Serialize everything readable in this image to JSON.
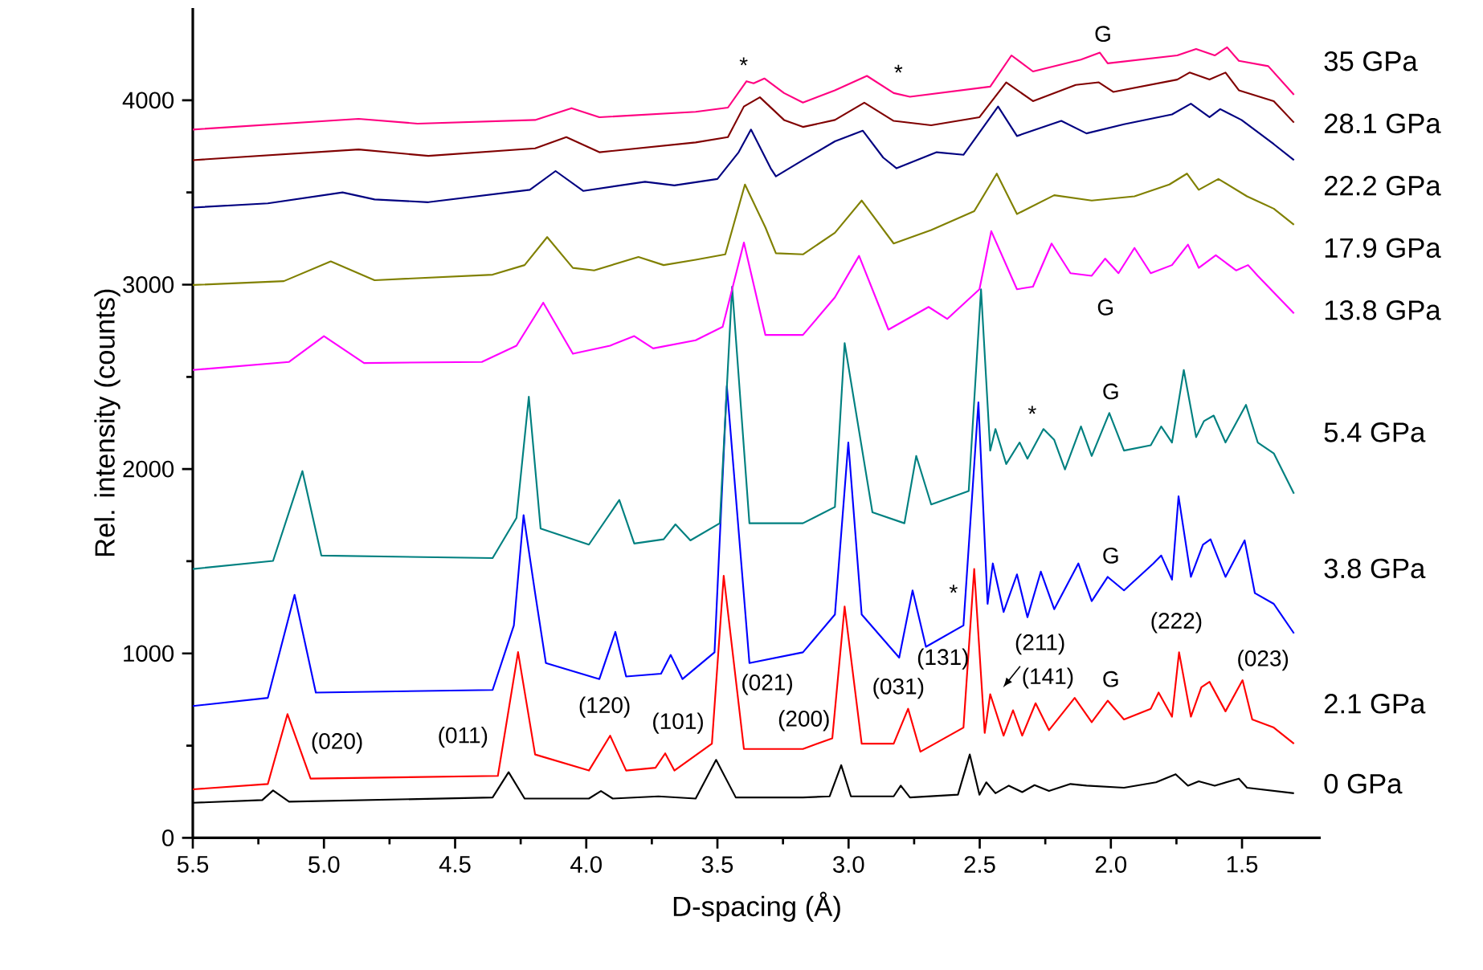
{
  "chart_data": {
    "type": "line",
    "xlabel": "D-spacing (Å)",
    "ylabel": "Rel. intensity (counts)",
    "xlim": [
      5.5,
      1.2
    ],
    "ylim": [
      0,
      4500
    ],
    "xticks": [
      {
        "value": 5.5,
        "label": "5.5"
      },
      {
        "value": 5.0,
        "label": "5.0"
      },
      {
        "value": 4.5,
        "label": "4.5"
      },
      {
        "value": 4.0,
        "label": "4.0"
      },
      {
        "value": 3.5,
        "label": "3.5"
      },
      {
        "value": 3.0,
        "label": "3.0"
      },
      {
        "value": 2.5,
        "label": "2.5"
      },
      {
        "value": 2.0,
        "label": "2.0"
      },
      {
        "value": 1.5,
        "label": "1.5"
      }
    ],
    "yticks": [
      0,
      1000,
      2000,
      3000,
      4000
    ],
    "grid": false,
    "legend": false,
    "marker": "none",
    "line_style": "solid",
    "series": [
      {
        "name": "0 GPa",
        "color": "#000000",
        "x": [
          5.5,
          5.235,
          5.194,
          5.133,
          4.357,
          4.296,
          4.235,
          3.99,
          3.944,
          3.899,
          3.725,
          3.583,
          3.505,
          3.43,
          3.174,
          3.072,
          3.028,
          2.991,
          2.828,
          2.801,
          2.766,
          2.583,
          2.538,
          2.501,
          2.475,
          2.44,
          2.389,
          2.338,
          2.291,
          2.236,
          2.154,
          2.093,
          1.95,
          1.828,
          1.753,
          1.706,
          1.665,
          1.604,
          1.512,
          1.481,
          1.302
        ],
        "values": [
          190,
          205,
          257,
          196,
          219,
          356,
          213,
          213,
          254,
          213,
          225,
          213,
          423,
          219,
          219,
          225,
          394,
          225,
          225,
          283,
          219,
          234,
          452,
          234,
          301,
          242,
          283,
          248,
          286,
          254,
          292,
          283,
          272,
          301,
          345,
          283,
          307,
          283,
          321,
          272,
          242
        ]
      },
      {
        "name": "2.1 GPa",
        "color": "#ff0000",
        "x": [
          5.5,
          5.214,
          5.139,
          5.051,
          4.337,
          4.26,
          4.195,
          3.99,
          3.909,
          3.848,
          3.736,
          3.699,
          3.664,
          3.521,
          3.476,
          3.399,
          3.174,
          3.062,
          3.015,
          2.95,
          2.828,
          2.773,
          2.726,
          2.562,
          2.521,
          2.481,
          2.46,
          2.409,
          2.373,
          2.338,
          2.287,
          2.236,
          2.138,
          2.073,
          2.012,
          1.95,
          1.848,
          1.818,
          1.767,
          1.74,
          1.695,
          1.655,
          1.624,
          1.563,
          1.498,
          1.461,
          1.379,
          1.302
        ],
        "values": [
          263,
          292,
          671,
          321,
          336,
          1007,
          452,
          365,
          554,
          365,
          380,
          458,
          365,
          511,
          1421,
          482,
          482,
          540,
          1254,
          511,
          511,
          700,
          467,
          598,
          1458,
          569,
          779,
          554,
          692,
          554,
          730,
          584,
          759,
          627,
          744,
          642,
          700,
          788,
          657,
          1006,
          657,
          817,
          846,
          686,
          855,
          642,
          598,
          511
        ]
      },
      {
        "name": "3.8 GPa",
        "color": "#0000ff",
        "x": [
          5.5,
          5.214,
          5.112,
          5.031,
          4.357,
          4.276,
          4.239,
          4.195,
          4.154,
          3.95,
          3.889,
          3.848,
          3.715,
          3.678,
          3.633,
          3.511,
          3.464,
          3.378,
          3.174,
          3.052,
          3.001,
          2.95,
          2.807,
          2.756,
          2.705,
          2.562,
          2.505,
          2.47,
          2.45,
          2.409,
          2.358,
          2.318,
          2.267,
          2.216,
          2.124,
          2.073,
          2.012,
          1.95,
          1.838,
          1.808,
          1.767,
          1.742,
          1.695,
          1.649,
          1.62,
          1.563,
          1.49,
          1.451,
          1.379,
          1.302
        ],
        "values": [
          715,
          759,
          1318,
          788,
          802,
          1152,
          1750,
          1327,
          948,
          861,
          1117,
          875,
          890,
          992,
          861,
          1006,
          2450,
          948,
          1006,
          1211,
          2144,
          1211,
          977,
          1342,
          1036,
          1152,
          2362,
          1269,
          1488,
          1225,
          1429,
          1196,
          1444,
          1240,
          1488,
          1284,
          1415,
          1342,
          1488,
          1531,
          1400,
          1852,
          1415,
          1590,
          1619,
          1415,
          1613,
          1327,
          1269,
          1109
        ]
      },
      {
        "name": "5.4 GPa",
        "color": "#008080",
        "x": [
          5.5,
          5.194,
          5.082,
          5.01,
          4.357,
          4.266,
          4.219,
          4.174,
          3.99,
          3.874,
          3.817,
          3.705,
          3.66,
          3.603,
          3.491,
          3.444,
          3.378,
          3.174,
          3.052,
          3.015,
          2.909,
          2.787,
          2.742,
          2.685,
          2.542,
          2.495,
          2.46,
          2.44,
          2.399,
          2.348,
          2.318,
          2.257,
          2.216,
          2.175,
          2.114,
          2.073,
          2.006,
          1.95,
          1.848,
          1.808,
          1.767,
          1.722,
          1.675,
          1.645,
          1.608,
          1.563,
          1.485,
          1.44,
          1.379,
          1.302
        ],
        "values": [
          1458,
          1502,
          1989,
          1531,
          1517,
          1735,
          2392,
          1677,
          1590,
          1832,
          1596,
          1619,
          1700,
          1613,
          1706,
          2989,
          1706,
          1706,
          1794,
          2683,
          1765,
          1706,
          2071,
          1808,
          1881,
          2975,
          2100,
          2217,
          2027,
          2144,
          2056,
          2217,
          2158,
          1998,
          2231,
          2071,
          2304,
          2100,
          2129,
          2231,
          2144,
          2537,
          2173,
          2260,
          2290,
          2144,
          2348,
          2144,
          2085,
          1867
        ]
      },
      {
        "name": "13.8 GPa",
        "color": "#ff00ff",
        "x": [
          5.5,
          5.133,
          5.0,
          4.847,
          4.398,
          4.266,
          4.164,
          4.051,
          3.909,
          3.817,
          3.745,
          3.583,
          3.48,
          3.399,
          3.317,
          3.174,
          3.052,
          2.96,
          2.848,
          2.695,
          2.624,
          2.501,
          2.456,
          2.358,
          2.297,
          2.226,
          2.154,
          2.073,
          2.022,
          1.971,
          1.91,
          1.848,
          1.767,
          1.706,
          1.665,
          1.6,
          1.522,
          1.477,
          1.44,
          1.302
        ],
        "values": [
          2537,
          2581,
          2721,
          2575,
          2581,
          2669,
          2902,
          2625,
          2669,
          2721,
          2654,
          2698,
          2771,
          3228,
          2727,
          2727,
          2931,
          3156,
          2756,
          2879,
          2814,
          2975,
          3290,
          2975,
          2989,
          3223,
          3062,
          3048,
          3141,
          3062,
          3199,
          3062,
          3106,
          3217,
          3091,
          3159,
          3077,
          3106,
          3048,
          2844
        ]
      },
      {
        "name": "17.9 GPa",
        "color": "#808000",
        "x": [
          5.5,
          5.153,
          4.974,
          4.807,
          4.357,
          4.235,
          4.149,
          4.051,
          3.97,
          3.801,
          3.705,
          3.583,
          3.47,
          3.395,
          3.317,
          3.277,
          3.174,
          3.052,
          2.95,
          2.828,
          2.685,
          2.521,
          2.435,
          2.358,
          2.216,
          2.073,
          1.91,
          1.777,
          1.71,
          1.665,
          1.59,
          1.481,
          1.379,
          1.302
        ],
        "values": [
          2998,
          3019,
          3126,
          3024,
          3054,
          3106,
          3258,
          3091,
          3077,
          3150,
          3106,
          3135,
          3164,
          3543,
          3310,
          3170,
          3164,
          3281,
          3456,
          3223,
          3296,
          3398,
          3602,
          3383,
          3485,
          3456,
          3479,
          3543,
          3602,
          3514,
          3573,
          3479,
          3412,
          3325
        ]
      },
      {
        "name": "22.2 GPa",
        "color": "#000080",
        "x": [
          5.5,
          5.214,
          4.929,
          4.807,
          4.602,
          4.215,
          4.117,
          4.011,
          3.776,
          3.664,
          3.5,
          3.419,
          3.372,
          3.297,
          3.277,
          3.174,
          3.052,
          2.946,
          2.868,
          2.817,
          2.664,
          2.562,
          2.43,
          2.358,
          2.189,
          2.093,
          1.95,
          1.767,
          1.695,
          1.624,
          1.583,
          1.502,
          1.379,
          1.302
        ],
        "values": [
          3418,
          3441,
          3500,
          3462,
          3447,
          3514,
          3616,
          3508,
          3558,
          3538,
          3573,
          3718,
          3841,
          3631,
          3587,
          3675,
          3777,
          3835,
          3689,
          3631,
          3718,
          3704,
          3966,
          3806,
          3888,
          3820,
          3870,
          3923,
          3981,
          3908,
          3952,
          3893,
          3762,
          3675
        ]
      },
      {
        "name": "28.1 GPa",
        "color": "#800000",
        "x": [
          5.5,
          4.868,
          4.602,
          4.195,
          4.076,
          3.95,
          3.583,
          3.46,
          3.399,
          3.338,
          3.246,
          3.174,
          3.052,
          2.94,
          2.828,
          2.685,
          2.501,
          2.399,
          2.297,
          2.134,
          2.046,
          1.991,
          1.747,
          1.7,
          1.624,
          1.563,
          1.512,
          1.379,
          1.302
        ],
        "values": [
          3675,
          3733,
          3698,
          3739,
          3800,
          3718,
          3771,
          3800,
          3966,
          4016,
          3893,
          3855,
          3893,
          3987,
          3888,
          3864,
          3908,
          4097,
          3995,
          4083,
          4097,
          4045,
          4112,
          4150,
          4112,
          4150,
          4054,
          3995,
          3879
        ]
      },
      {
        "name": "35 GPa",
        "color": "#ff0080",
        "x": [
          5.5,
          4.868,
          4.643,
          4.195,
          4.056,
          3.95,
          3.583,
          3.46,
          3.389,
          3.362,
          3.321,
          3.246,
          3.174,
          3.052,
          2.93,
          2.828,
          2.766,
          2.46,
          2.379,
          2.297,
          2.114,
          2.042,
          2.012,
          1.747,
          1.675,
          1.604,
          1.557,
          1.512,
          1.4,
          1.302
        ],
        "values": [
          3841,
          3899,
          3873,
          3893,
          3957,
          3908,
          3937,
          3960,
          4103,
          4092,
          4118,
          4039,
          3987,
          4054,
          4132,
          4039,
          4019,
          4074,
          4243,
          4156,
          4220,
          4258,
          4200,
          4243,
          4278,
          4243,
          4287,
          4214,
          4185,
          4030
        ]
      }
    ],
    "annotations": [
      "(020)",
      "(011)",
      "(120)",
      "(101)",
      "(021)",
      "(200)",
      "(031)",
      "(131)",
      "(211)",
      "(141)",
      "(222)",
      "(023)",
      "G",
      "G",
      "G",
      "G",
      "G",
      "*",
      "*",
      "*",
      "*"
    ]
  }
}
